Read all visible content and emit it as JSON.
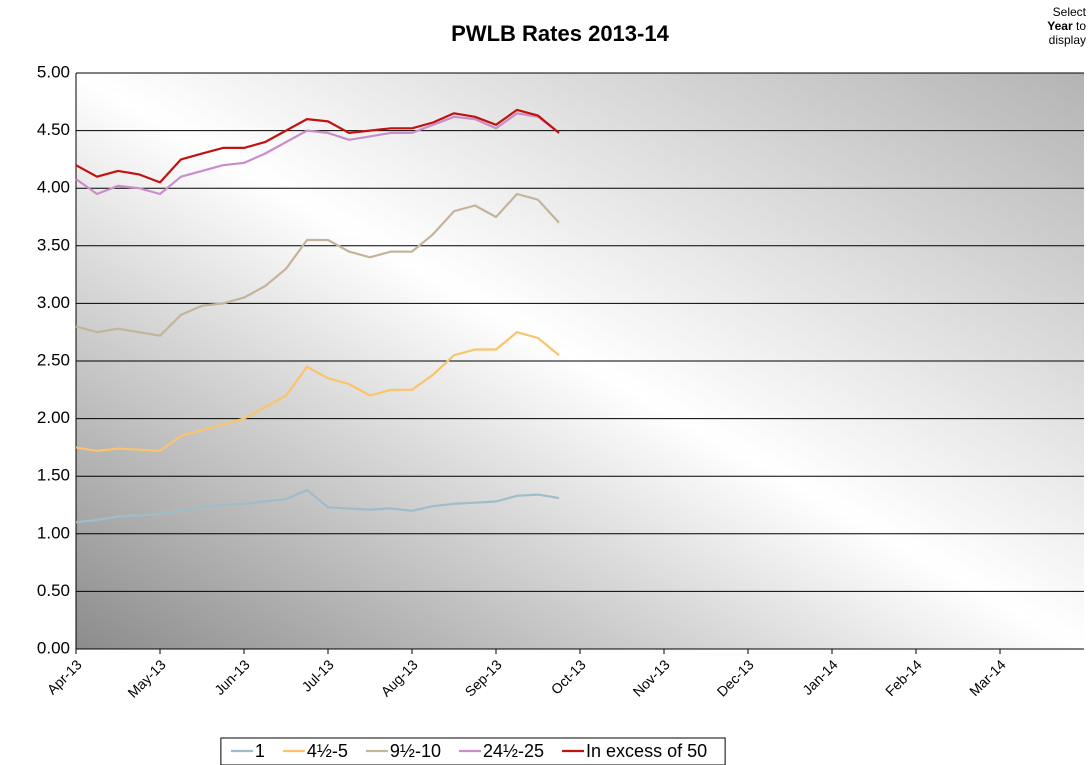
{
  "chart_data": {
    "type": "line",
    "title": "PWLB Rates 2013-14",
    "note": [
      "Select",
      "Year",
      "to",
      "display"
    ],
    "categories": [
      "Apr-13",
      null,
      null,
      null,
      "May-13",
      null,
      null,
      null,
      "Jun-13",
      null,
      null,
      null,
      "Jul-13",
      null,
      null,
      null,
      "Aug-13",
      null,
      null,
      null,
      "Sep-13",
      null,
      null,
      null,
      "Oct-13",
      null,
      null,
      null,
      "Nov-13",
      null,
      null,
      null,
      "Dec-13",
      null,
      null,
      null,
      "Jan-14",
      null,
      null,
      null,
      "Feb-14",
      null,
      null,
      null,
      "Mar-14",
      null,
      null,
      null
    ],
    "series": [
      {
        "name": "1",
        "color": "#9dbdcb",
        "values": [
          1.1,
          1.12,
          1.15,
          1.16,
          1.17,
          1.2,
          1.23,
          1.25,
          1.26,
          1.28,
          1.3,
          1.38,
          1.23,
          1.22,
          1.21,
          1.22,
          1.2,
          1.24,
          1.26,
          1.27,
          1.28,
          1.33,
          1.34,
          1.31,
          null,
          null,
          null,
          null,
          null,
          null,
          null,
          null,
          null,
          null,
          null,
          null,
          null,
          null,
          null,
          null,
          null,
          null,
          null,
          null,
          null,
          null,
          null,
          null
        ]
      },
      {
        "name": "4½-5",
        "color": "#f9c46c",
        "values": [
          1.75,
          1.72,
          1.74,
          1.73,
          1.72,
          1.85,
          1.9,
          1.95,
          2.0,
          2.1,
          2.2,
          2.45,
          2.35,
          2.3,
          2.2,
          2.25,
          2.25,
          2.38,
          2.55,
          2.6,
          2.6,
          2.75,
          2.7,
          2.55,
          null,
          null,
          null,
          null,
          null,
          null,
          null,
          null,
          null,
          null,
          null,
          null,
          null,
          null,
          null,
          null,
          null,
          null,
          null,
          null,
          null,
          null,
          null,
          null
        ]
      },
      {
        "name": "9½-10",
        "color": "#c4b49a",
        "values": [
          2.8,
          2.75,
          2.78,
          2.75,
          2.72,
          2.9,
          2.98,
          3.0,
          3.05,
          3.15,
          3.3,
          3.55,
          3.55,
          3.45,
          3.4,
          3.45,
          3.45,
          3.6,
          3.8,
          3.85,
          3.75,
          3.95,
          3.9,
          3.7,
          null,
          null,
          null,
          null,
          null,
          null,
          null,
          null,
          null,
          null,
          null,
          null,
          null,
          null,
          null,
          null,
          null,
          null,
          null,
          null,
          null,
          null,
          null,
          null
        ]
      },
      {
        "name": "24½-25",
        "color": "#c98ec9",
        "values": [
          4.08,
          3.95,
          4.02,
          4.0,
          3.95,
          4.1,
          4.15,
          4.2,
          4.22,
          4.3,
          4.4,
          4.5,
          4.48,
          4.42,
          4.45,
          4.48,
          4.48,
          4.55,
          4.62,
          4.6,
          4.52,
          4.65,
          4.62,
          4.48,
          null,
          null,
          null,
          null,
          null,
          null,
          null,
          null,
          null,
          null,
          null,
          null,
          null,
          null,
          null,
          null,
          null,
          null,
          null,
          null,
          null,
          null,
          null,
          null
        ]
      },
      {
        "name": "In excess of 50",
        "color": "#c0120f",
        "values": [
          4.2,
          4.1,
          4.15,
          4.12,
          4.05,
          4.25,
          4.3,
          4.35,
          4.35,
          4.4,
          4.5,
          4.6,
          4.58,
          4.48,
          4.5,
          4.52,
          4.52,
          4.57,
          4.65,
          4.62,
          4.55,
          4.68,
          4.63,
          4.48,
          null,
          null,
          null,
          null,
          null,
          null,
          null,
          null,
          null,
          null,
          null,
          null,
          null,
          null,
          null,
          null,
          null,
          null,
          null,
          null,
          null,
          null,
          null,
          null
        ]
      }
    ],
    "ylim": [
      0,
      5
    ],
    "yticks": [
      {
        "value": 0,
        "label": "0.00"
      },
      {
        "value": 0.5,
        "label": "0.50"
      },
      {
        "value": 1,
        "label": "1.00"
      },
      {
        "value": 1.5,
        "label": "1.50"
      },
      {
        "value": 2,
        "label": "2.00"
      },
      {
        "value": 2.5,
        "label": "2.50"
      },
      {
        "value": 3,
        "label": "3.00"
      },
      {
        "value": 3.5,
        "label": "3.50"
      },
      {
        "value": 4,
        "label": "4.00"
      },
      {
        "value": 4.5,
        "label": "4.50"
      },
      {
        "value": 5,
        "label": "5.00"
      }
    ],
    "grid": true,
    "legend": "bottom"
  }
}
